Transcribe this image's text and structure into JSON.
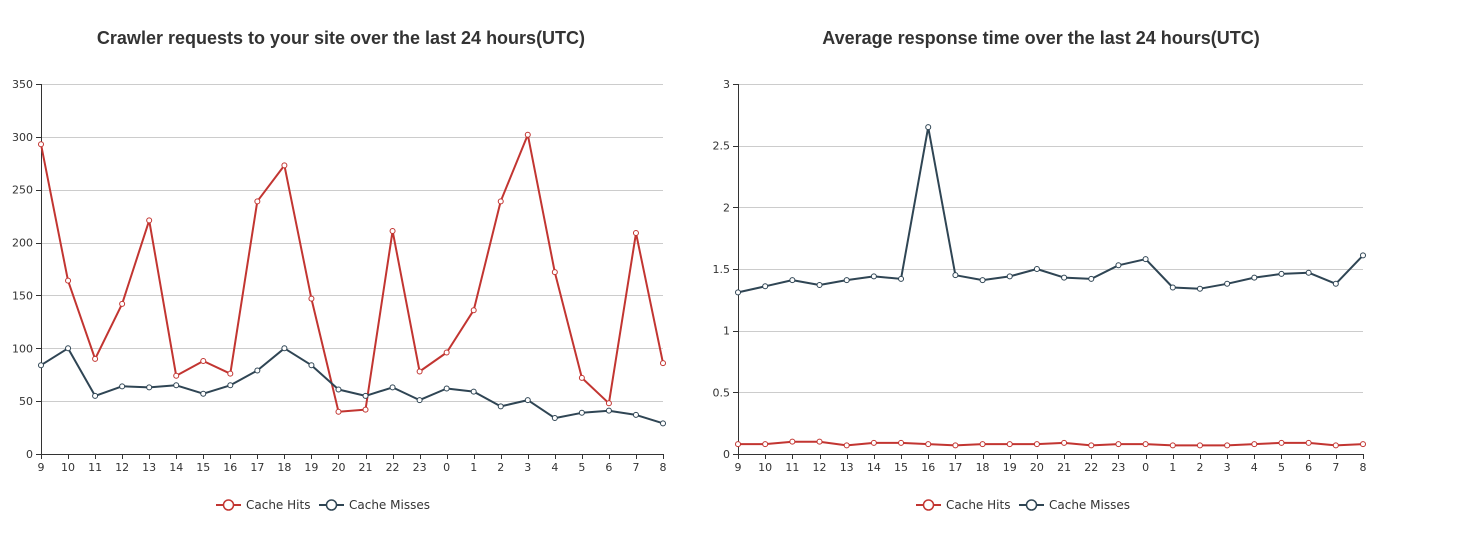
{
  "colors": {
    "cache_hits": "#c23531",
    "cache_misses": "#2f4554"
  },
  "chart_data": [
    {
      "type": "line",
      "title": "Crawler requests to your site over the last 24 hours(UTC)",
      "xlabel": "",
      "ylabel": "",
      "categories": [
        "9",
        "10",
        "11",
        "12",
        "13",
        "14",
        "15",
        "16",
        "17",
        "18",
        "19",
        "20",
        "21",
        "22",
        "23",
        "0",
        "1",
        "2",
        "3",
        "4",
        "5",
        "6",
        "7",
        "8"
      ],
      "ylim": [
        0,
        350
      ],
      "yticks": [
        0,
        50,
        100,
        150,
        200,
        250,
        300,
        350
      ],
      "ytick_labels": [
        "0",
        "50",
        "100",
        "150",
        "200",
        "250",
        "300",
        "350"
      ],
      "grid": true,
      "legend_position": "bottom-center",
      "series": [
        {
          "name": "Cache Hits",
          "values": [
            293,
            164,
            90,
            142,
            221,
            74,
            88,
            76,
            239,
            273,
            147,
            40,
            42,
            211,
            78,
            96,
            136,
            239,
            302,
            172,
            72,
            48,
            209,
            86
          ]
        },
        {
          "name": "Cache Misses",
          "values": [
            84,
            100,
            55,
            64,
            63,
            65,
            57,
            65,
            79,
            100,
            84,
            61,
            55,
            63,
            51,
            62,
            59,
            45,
            51,
            34,
            39,
            41,
            37,
            29
          ]
        }
      ]
    },
    {
      "type": "line",
      "title": "Average response time over the last 24 hours(UTC)",
      "xlabel": "",
      "ylabel": "",
      "categories": [
        "9",
        "10",
        "11",
        "12",
        "13",
        "14",
        "15",
        "16",
        "17",
        "18",
        "19",
        "20",
        "21",
        "22",
        "23",
        "0",
        "1",
        "2",
        "3",
        "4",
        "5",
        "6",
        "7",
        "8"
      ],
      "ylim": [
        0,
        3
      ],
      "yticks": [
        0,
        0.5,
        1,
        1.5,
        2,
        2.5,
        3
      ],
      "ytick_labels": [
        "0",
        "0.5",
        "1",
        "1.5",
        "2",
        "2.5",
        "3"
      ],
      "grid": true,
      "legend_position": "bottom-center",
      "series": [
        {
          "name": "Cache Hits",
          "values": [
            0.08,
            0.08,
            0.1,
            0.1,
            0.07,
            0.09,
            0.09,
            0.08,
            0.07,
            0.08,
            0.08,
            0.08,
            0.09,
            0.07,
            0.08,
            0.08,
            0.07,
            0.07,
            0.07,
            0.08,
            0.09,
            0.09,
            0.07,
            0.08
          ]
        },
        {
          "name": "Cache Misses",
          "values": [
            1.31,
            1.36,
            1.41,
            1.37,
            1.41,
            1.44,
            1.42,
            2.65,
            1.45,
            1.41,
            1.44,
            1.5,
            1.43,
            1.42,
            1.53,
            1.58,
            1.35,
            1.34,
            1.38,
            1.43,
            1.46,
            1.47,
            1.38,
            1.61
          ]
        }
      ]
    }
  ]
}
